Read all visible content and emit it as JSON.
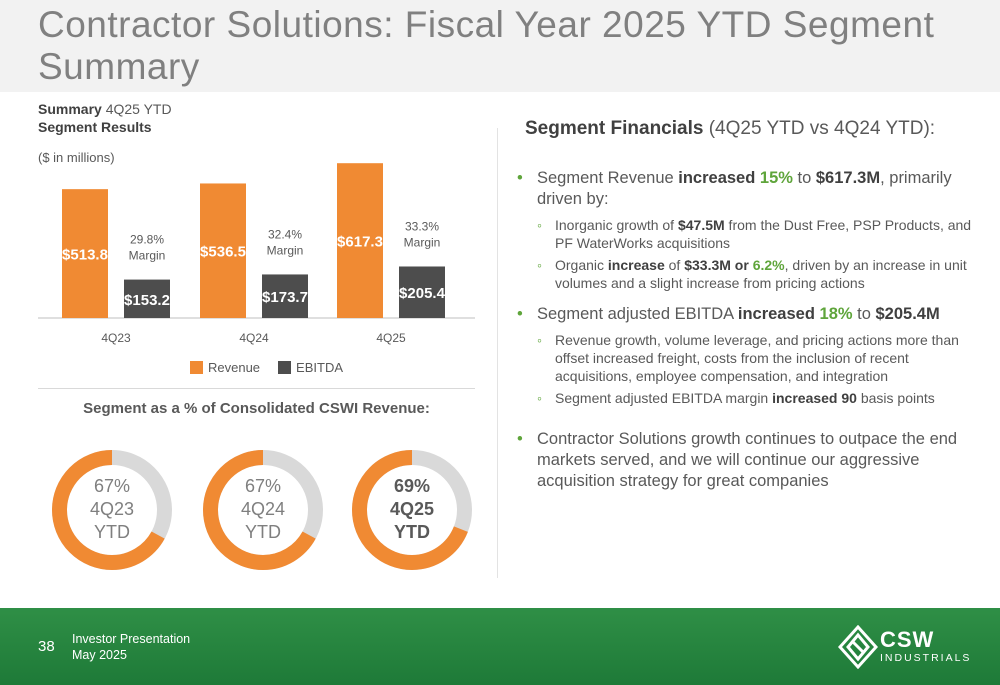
{
  "title": "Contractor Solutions: Fiscal Year 2025 YTD Segment Summary",
  "summary": {
    "bold1": "Summary",
    "rest1": " 4Q25 YTD",
    "bold2": "Segment Results",
    "units": "($ in millions)"
  },
  "chart_data": {
    "type": "bar",
    "categories": [
      "4Q23",
      "4Q24",
      "4Q25"
    ],
    "series": [
      {
        "name": "Revenue",
        "values": [
          513.8,
          536.5,
          617.3
        ],
        "labels": [
          "$513.8",
          "$536.5",
          "$617.3"
        ],
        "color": "#f08a33"
      },
      {
        "name": "EBITDA",
        "values": [
          153.2,
          173.7,
          205.4
        ],
        "labels": [
          "$153.2",
          "$173.7",
          "$205.4"
        ],
        "color": "#4d4d4d"
      }
    ],
    "margins": [
      {
        "pct": "29.8%",
        "word": "Margin"
      },
      {
        "pct": "32.4%",
        "word": "Margin"
      },
      {
        "pct": "33.3%",
        "word": "Margin"
      }
    ],
    "ylim": [
      0,
      650
    ]
  },
  "pct_section": {
    "heading": "Segment as a % of Consolidated CSWI Revenue:",
    "donuts": [
      {
        "value": 0.67,
        "pct": "67%",
        "period": "4Q23",
        "ytd": "YTD",
        "bold": false
      },
      {
        "value": 0.67,
        "pct": "67%",
        "period": "4Q24",
        "ytd": "YTD",
        "bold": false
      },
      {
        "value": 0.69,
        "pct": "69%",
        "period": "4Q25",
        "ytd": "YTD",
        "bold": true
      }
    ],
    "color_fill": "#f08a33",
    "color_track": "#d9d9d9"
  },
  "financials": {
    "heading_bold": "Segment Financials",
    "heading_rest": " (4Q25 YTD vs 4Q24 YTD):",
    "b1": {
      "t1": "Segment Revenue ",
      "t2": "increased ",
      "t3": "15%",
      "t4": " to ",
      "t5": "$617.3M",
      "t6": ", primarily driven by:"
    },
    "b1a": {
      "t1": "Inorganic growth of ",
      "t2": "$47.5M",
      "t3": " from the Dust Free, PSP Products, and PF WaterWorks acquisitions"
    },
    "b1b": {
      "t1": "Organic ",
      "t2": "increase",
      "t3": " of ",
      "t4": "$33.3M or ",
      "t5": "6.2%",
      "t6": ", driven by an increase in unit volumes and a slight increase from pricing actions"
    },
    "b2": {
      "t1": "Segment adjusted EBITDA ",
      "t2": "increased ",
      "t3": "18%",
      "t4": " to ",
      "t5": "$205.4M"
    },
    "b2a": {
      "t1": "Revenue growth, volume leverage, and pricing actions more than offset increased freight, costs from the inclusion of recent acquisitions, employee compensation, and integration"
    },
    "b2b": {
      "t1": "Segment adjusted EBITDA margin ",
      "t2": "increased 90",
      "t3": " basis points"
    },
    "b3": {
      "t1": "Contractor Solutions growth continues to outpace the end markets served, and we will continue our aggressive acquisition strategy for great companies"
    }
  },
  "footer": {
    "page": "38",
    "line1": "Investor Presentation",
    "line2": "May 2025",
    "logo_word": "CSW",
    "logo_sub": "INDUSTRIALS",
    "logo_icon": "csw-diamond-logo-icon"
  }
}
